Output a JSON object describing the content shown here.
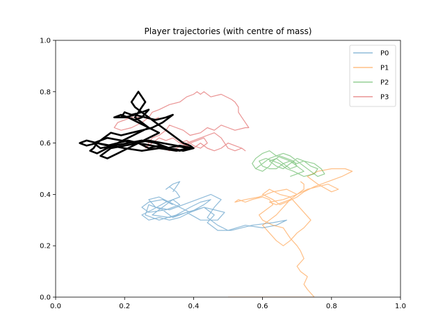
{
  "chart_data": {
    "type": "line",
    "title": "Player trajectories (with centre of mass)",
    "xlabel": "",
    "ylabel": "",
    "xlim": [
      0.0,
      1.0
    ],
    "ylim": [
      0.0,
      1.0
    ],
    "x_ticks": [
      "0.0",
      "0.2",
      "0.4",
      "0.6",
      "0.8",
      "1.0"
    ],
    "y_ticks": [
      "0.0",
      "0.2",
      "0.4",
      "0.6",
      "0.8",
      "1.0"
    ],
    "grid": false,
    "legend_position": "top-right",
    "series": [
      {
        "name": "P0",
        "color": "#1f77b4",
        "opacity": 0.5,
        "x": [
          0.34,
          0.31,
          0.27,
          0.25,
          0.27,
          0.32,
          0.36,
          0.34,
          0.3,
          0.28,
          0.33,
          0.38,
          0.43,
          0.46,
          0.49,
          0.47,
          0.42,
          0.38,
          0.34,
          0.31,
          0.27,
          0.26,
          0.3,
          0.35,
          0.39,
          0.42,
          0.45,
          0.43,
          0.39,
          0.36,
          0.33,
          0.3,
          0.27,
          0.29,
          0.33,
          0.37,
          0.41,
          0.45,
          0.48,
          0.46,
          0.44,
          0.47,
          0.5,
          0.55,
          0.6,
          0.64,
          0.67,
          0.63,
          0.57,
          0.51,
          0.47,
          0.44,
          0.46,
          0.43,
          0.39,
          0.36,
          0.33,
          0.3,
          0.27,
          0.25,
          0.28,
          0.32,
          0.36,
          0.35,
          0.33,
          0.32,
          0.34,
          0.36,
          0.34
        ],
        "y": [
          0.36,
          0.38,
          0.37,
          0.35,
          0.33,
          0.34,
          0.36,
          0.38,
          0.34,
          0.32,
          0.31,
          0.33,
          0.35,
          0.34,
          0.33,
          0.3,
          0.3,
          0.33,
          0.31,
          0.34,
          0.36,
          0.32,
          0.3,
          0.32,
          0.35,
          0.37,
          0.38,
          0.36,
          0.33,
          0.35,
          0.37,
          0.39,
          0.38,
          0.35,
          0.34,
          0.36,
          0.38,
          0.4,
          0.38,
          0.35,
          0.31,
          0.28,
          0.26,
          0.28,
          0.27,
          0.28,
          0.3,
          0.29,
          0.28,
          0.26,
          0.26,
          0.29,
          0.32,
          0.35,
          0.33,
          0.31,
          0.3,
          0.31,
          0.3,
          0.32,
          0.34,
          0.37,
          0.39,
          0.41,
          0.43,
          0.42,
          0.44,
          0.45,
          0.41
        ]
      },
      {
        "name": "P1",
        "color": "#ff7f0e",
        "opacity": 0.5,
        "x": [
          0.5,
          0.62,
          0.75,
          0.73,
          0.72,
          0.73,
          0.71,
          0.7,
          0.72,
          0.71,
          0.7,
          0.68,
          0.67,
          0.66,
          0.63,
          0.6,
          0.59,
          0.61,
          0.63,
          0.62,
          0.6,
          0.57,
          0.55,
          0.53,
          0.52,
          0.55,
          0.59,
          0.63,
          0.67,
          0.7,
          0.66,
          0.62,
          0.64,
          0.68,
          0.7,
          0.73,
          0.76,
          0.79,
          0.82,
          0.8,
          0.76,
          0.73,
          0.76,
          0.8,
          0.84,
          0.86,
          0.83,
          0.79,
          0.75,
          0.72,
          0.7,
          0.67,
          0.65,
          0.63,
          0.6,
          0.62,
          0.65,
          0.68,
          0.7,
          0.72,
          0.74,
          0.72,
          0.7,
          0.68,
          0.66,
          0.64,
          0.62,
          0.6,
          0.62,
          0.64,
          0.66,
          0.68,
          0.7,
          0.72,
          0.72,
          0.71
        ],
        "y": [
          0.0,
          0.0,
          0.0,
          0.03,
          0.05,
          0.08,
          0.1,
          0.12,
          0.15,
          0.18,
          0.2,
          0.23,
          0.25,
          0.27,
          0.28,
          0.3,
          0.32,
          0.34,
          0.36,
          0.38,
          0.39,
          0.38,
          0.37,
          0.38,
          0.37,
          0.38,
          0.39,
          0.41,
          0.42,
          0.4,
          0.38,
          0.37,
          0.36,
          0.38,
          0.4,
          0.42,
          0.43,
          0.44,
          0.42,
          0.41,
          0.44,
          0.47,
          0.49,
          0.5,
          0.5,
          0.49,
          0.47,
          0.45,
          0.43,
          0.41,
          0.39,
          0.37,
          0.36,
          0.38,
          0.4,
          0.42,
          0.4,
          0.39,
          0.36,
          0.33,
          0.3,
          0.27,
          0.25,
          0.22,
          0.2,
          0.22,
          0.25,
          0.28,
          0.3,
          0.32,
          0.35,
          0.38,
          0.4,
          0.42,
          0.44,
          0.45
        ]
      },
      {
        "name": "P2",
        "color": "#2ca02c",
        "opacity": 0.5,
        "x": [
          0.58,
          0.6,
          0.62,
          0.64,
          0.66,
          0.68,
          0.7,
          0.72,
          0.75,
          0.77,
          0.78,
          0.76,
          0.74,
          0.72,
          0.7,
          0.68,
          0.66,
          0.64,
          0.62,
          0.6,
          0.58,
          0.57,
          0.58,
          0.6,
          0.62,
          0.63,
          0.65,
          0.67,
          0.69,
          0.7,
          0.68,
          0.66,
          0.64,
          0.62,
          0.64,
          0.66,
          0.68,
          0.7,
          0.72,
          0.74,
          0.76,
          0.75,
          0.72,
          0.69,
          0.67,
          0.65,
          0.63,
          0.61,
          0.59,
          0.6,
          0.62,
          0.64,
          0.66,
          0.68,
          0.7,
          0.72,
          0.7,
          0.68
        ],
        "y": [
          0.5,
          0.52,
          0.54,
          0.55,
          0.54,
          0.53,
          0.52,
          0.53,
          0.52,
          0.5,
          0.48,
          0.47,
          0.49,
          0.51,
          0.53,
          0.55,
          0.56,
          0.55,
          0.57,
          0.56,
          0.54,
          0.52,
          0.5,
          0.49,
          0.51,
          0.53,
          0.55,
          0.54,
          0.53,
          0.51,
          0.5,
          0.52,
          0.54,
          0.53,
          0.51,
          0.5,
          0.52,
          0.54,
          0.53,
          0.51,
          0.5,
          0.48,
          0.47,
          0.49,
          0.5,
          0.52,
          0.53,
          0.54,
          0.53,
          0.51,
          0.5,
          0.5,
          0.52,
          0.53,
          0.51,
          0.49,
          0.48,
          0.47
        ]
      },
      {
        "name": "P3",
        "color": "#d62728",
        "opacity": 0.5,
        "x": [
          0.3,
          0.28,
          0.26,
          0.22,
          0.2,
          0.18,
          0.17,
          0.19,
          0.22,
          0.25,
          0.27,
          0.28,
          0.3,
          0.33,
          0.36,
          0.38,
          0.4,
          0.41,
          0.42,
          0.43,
          0.45,
          0.48,
          0.51,
          0.52,
          0.53,
          0.53,
          0.54,
          0.55,
          0.56,
          0.55,
          0.52,
          0.5,
          0.48,
          0.46,
          0.44,
          0.42,
          0.39,
          0.37,
          0.35,
          0.33,
          0.32,
          0.3,
          0.28,
          0.27,
          0.26,
          0.28,
          0.3,
          0.32,
          0.34,
          0.36,
          0.38,
          0.4,
          0.42,
          0.44,
          0.46,
          0.48,
          0.49,
          0.5,
          0.52,
          0.54,
          0.55,
          0.54,
          0.52,
          0.5,
          0.48,
          0.46,
          0.44,
          0.42,
          0.4,
          0.38,
          0.36,
          0.38,
          0.4,
          0.42,
          0.44,
          0.43,
          0.41,
          0.39,
          0.37,
          0.35,
          0.33,
          0.31,
          0.3
        ],
        "y": [
          0.7,
          0.69,
          0.7,
          0.7,
          0.69,
          0.68,
          0.66,
          0.65,
          0.66,
          0.68,
          0.7,
          0.72,
          0.73,
          0.75,
          0.76,
          0.78,
          0.79,
          0.8,
          0.79,
          0.8,
          0.78,
          0.79,
          0.77,
          0.76,
          0.74,
          0.72,
          0.7,
          0.68,
          0.66,
          0.66,
          0.65,
          0.66,
          0.67,
          0.65,
          0.66,
          0.64,
          0.63,
          0.65,
          0.66,
          0.67,
          0.65,
          0.63,
          0.62,
          0.6,
          0.58,
          0.6,
          0.62,
          0.61,
          0.62,
          0.6,
          0.6,
          0.61,
          0.62,
          0.63,
          0.64,
          0.62,
          0.6,
          0.58,
          0.57,
          0.58,
          0.57,
          0.58,
          0.59,
          0.6,
          0.58,
          0.57,
          0.58,
          0.6,
          0.58,
          0.59,
          0.6,
          0.61,
          0.59,
          0.58,
          0.6,
          0.62,
          0.61,
          0.6,
          0.59,
          0.58,
          0.57,
          0.58,
          0.58
        ]
      }
    ],
    "centre_of_mass": {
      "color": "#000000",
      "x": [
        0.39,
        0.35,
        0.3,
        0.25,
        0.2,
        0.16,
        0.12,
        0.09,
        0.07,
        0.09,
        0.12,
        0.15,
        0.18,
        0.21,
        0.24,
        0.27,
        0.3,
        0.33,
        0.36,
        0.38,
        0.35,
        0.31,
        0.27,
        0.23,
        0.19,
        0.15,
        0.11,
        0.13,
        0.17,
        0.21,
        0.25,
        0.29,
        0.33,
        0.37,
        0.4,
        0.36,
        0.32,
        0.28,
        0.24,
        0.2,
        0.16,
        0.13,
        0.15,
        0.18,
        0.21,
        0.24,
        0.27,
        0.3,
        0.27,
        0.24,
        0.21,
        0.19,
        0.2,
        0.22,
        0.25,
        0.27,
        0.25,
        0.23,
        0.21,
        0.19,
        0.17,
        0.2,
        0.23,
        0.26,
        0.29,
        0.32,
        0.34,
        0.31,
        0.28,
        0.25,
        0.22,
        0.19,
        0.16,
        0.14,
        0.12,
        0.11,
        0.1,
        0.12,
        0.15,
        0.18,
        0.21,
        0.24,
        0.27,
        0.25,
        0.23,
        0.24,
        0.25,
        0.26,
        0.25,
        0.24,
        0.23,
        0.22,
        0.23,
        0.25,
        0.27,
        0.29,
        0.31,
        0.33,
        0.35,
        0.37,
        0.39,
        0.4
      ],
      "y": [
        0.58,
        0.57,
        0.58,
        0.57,
        0.58,
        0.59,
        0.6,
        0.59,
        0.6,
        0.61,
        0.6,
        0.59,
        0.6,
        0.61,
        0.6,
        0.58,
        0.59,
        0.58,
        0.57,
        0.58,
        0.59,
        0.6,
        0.61,
        0.6,
        0.61,
        0.62,
        0.6,
        0.58,
        0.59,
        0.6,
        0.61,
        0.6,
        0.58,
        0.57,
        0.58,
        0.59,
        0.58,
        0.59,
        0.6,
        0.59,
        0.58,
        0.55,
        0.54,
        0.56,
        0.58,
        0.6,
        0.62,
        0.64,
        0.66,
        0.68,
        0.7,
        0.7,
        0.72,
        0.71,
        0.72,
        0.73,
        0.7,
        0.69,
        0.7,
        0.71,
        0.7,
        0.7,
        0.71,
        0.7,
        0.69,
        0.7,
        0.71,
        0.68,
        0.66,
        0.65,
        0.64,
        0.63,
        0.64,
        0.62,
        0.6,
        0.58,
        0.57,
        0.56,
        0.58,
        0.6,
        0.62,
        0.64,
        0.66,
        0.68,
        0.7,
        0.72,
        0.74,
        0.76,
        0.78,
        0.8,
        0.78,
        0.76,
        0.74,
        0.72,
        0.7,
        0.68,
        0.66,
        0.64,
        0.62,
        0.6,
        0.59,
        0.58
      ]
    }
  }
}
